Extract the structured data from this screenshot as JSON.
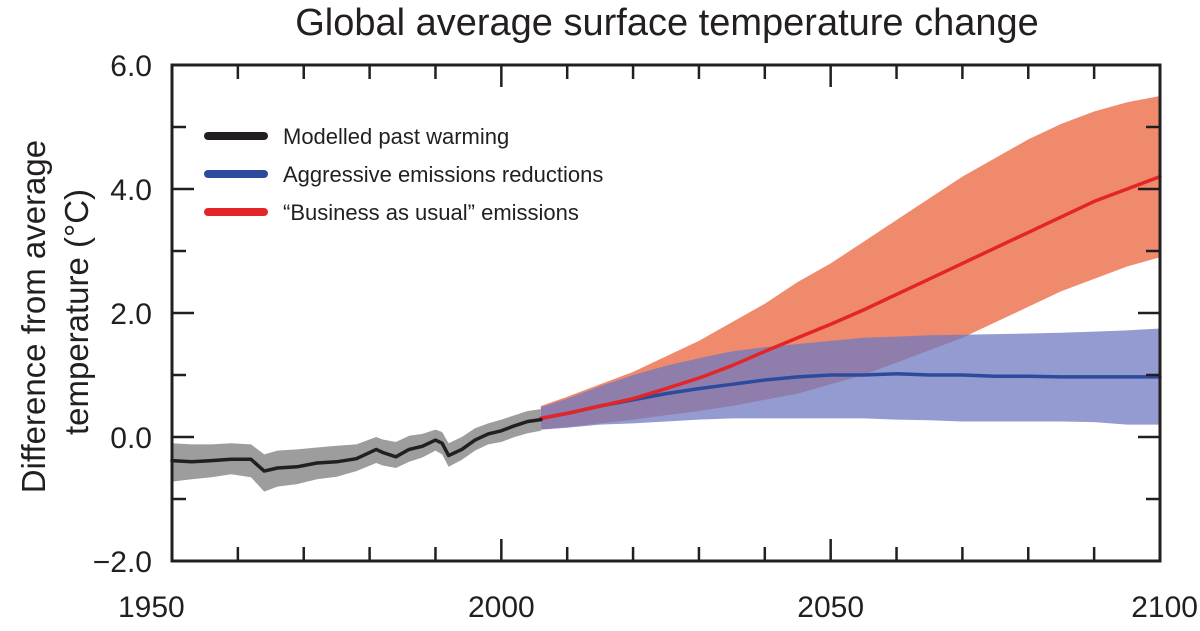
{
  "chart_data": {
    "type": "line",
    "title": "Global average surface temperature change",
    "ylabel": [
      "Difference from average",
      "temperature (°C)"
    ],
    "xlabel": "",
    "xlim": [
      1950,
      2100
    ],
    "ylim": [
      -2.0,
      6.0
    ],
    "x_ticks": [
      1950,
      2000,
      2050,
      2100
    ],
    "x_tick_labels": [
      "1950",
      "2000",
      "2050",
      "2100"
    ],
    "x_minor_tick_step": 10,
    "y_ticks": [
      -2.0,
      0.0,
      2.0,
      4.0,
      6.0
    ],
    "y_tick_labels": [
      "−2.0",
      "0.0",
      "2.0",
      "4.0",
      "6.0"
    ],
    "y_minor_tick_step": 1.0,
    "grid": false,
    "legend_position": "top-left",
    "series": [
      {
        "name": "Modelled past warming",
        "color": "#231f20",
        "band_color": "#9d9d9d",
        "x": [
          1950,
          1953,
          1956,
          1959,
          1962,
          1964,
          1966,
          1969,
          1972,
          1975,
          1978,
          1981,
          1982,
          1984,
          1986,
          1988,
          1990,
          1991,
          1992,
          1994,
          1996,
          1998,
          2000,
          2002,
          2004,
          2006
        ],
        "values": [
          -0.38,
          -0.4,
          -0.38,
          -0.36,
          -0.36,
          -0.55,
          -0.5,
          -0.48,
          -0.42,
          -0.4,
          -0.35,
          -0.2,
          -0.25,
          -0.32,
          -0.2,
          -0.15,
          -0.05,
          -0.1,
          -0.3,
          -0.2,
          -0.05,
          0.05,
          0.1,
          0.18,
          0.25,
          0.28
        ],
        "lower": [
          -0.72,
          -0.68,
          -0.65,
          -0.6,
          -0.65,
          -0.88,
          -0.8,
          -0.76,
          -0.68,
          -0.64,
          -0.55,
          -0.42,
          -0.46,
          -0.5,
          -0.4,
          -0.33,
          -0.22,
          -0.28,
          -0.48,
          -0.37,
          -0.22,
          -0.12,
          -0.08,
          0.0,
          0.06,
          0.1
        ],
        "upper": [
          -0.1,
          -0.12,
          -0.12,
          -0.1,
          -0.12,
          -0.28,
          -0.22,
          -0.2,
          -0.17,
          -0.14,
          -0.12,
          0.0,
          -0.04,
          -0.08,
          0.02,
          0.05,
          0.12,
          0.08,
          -0.1,
          0.0,
          0.14,
          0.22,
          0.28,
          0.35,
          0.42,
          0.45
        ]
      },
      {
        "name": "Aggressive emissions reductions",
        "color": "#2e4a9c",
        "band_color": "#6f79c0",
        "x": [
          2006,
          2010,
          2015,
          2020,
          2025,
          2030,
          2035,
          2040,
          2045,
          2050,
          2055,
          2060,
          2065,
          2070,
          2075,
          2080,
          2085,
          2090,
          2095,
          2100
        ],
        "values": [
          0.3,
          0.38,
          0.5,
          0.6,
          0.7,
          0.78,
          0.85,
          0.92,
          0.97,
          1.0,
          1.0,
          1.02,
          1.0,
          1.0,
          0.98,
          0.98,
          0.97,
          0.97,
          0.97,
          0.97
        ],
        "lower": [
          0.12,
          0.15,
          0.2,
          0.22,
          0.25,
          0.28,
          0.3,
          0.3,
          0.3,
          0.3,
          0.3,
          0.28,
          0.27,
          0.25,
          0.25,
          0.25,
          0.25,
          0.24,
          0.2,
          0.2
        ],
        "upper": [
          0.48,
          0.62,
          0.82,
          1.0,
          1.15,
          1.27,
          1.38,
          1.45,
          1.5,
          1.55,
          1.6,
          1.62,
          1.64,
          1.65,
          1.66,
          1.67,
          1.68,
          1.7,
          1.72,
          1.75
        ]
      },
      {
        "name": "“Business as usual” emissions",
        "color": "#e42528",
        "band_color": "#f08a6c",
        "x": [
          2006,
          2010,
          2015,
          2020,
          2025,
          2030,
          2035,
          2040,
          2045,
          2050,
          2055,
          2060,
          2065,
          2070,
          2075,
          2080,
          2085,
          2090,
          2095,
          2100
        ],
        "values": [
          0.3,
          0.38,
          0.5,
          0.62,
          0.78,
          0.95,
          1.15,
          1.38,
          1.6,
          1.82,
          2.05,
          2.3,
          2.55,
          2.8,
          3.05,
          3.3,
          3.55,
          3.8,
          4.0,
          4.2
        ],
        "lower": [
          0.12,
          0.16,
          0.22,
          0.28,
          0.35,
          0.42,
          0.5,
          0.6,
          0.7,
          0.85,
          1.0,
          1.2,
          1.4,
          1.6,
          1.85,
          2.1,
          2.35,
          2.55,
          2.75,
          2.9
        ],
        "upper": [
          0.5,
          0.65,
          0.85,
          1.05,
          1.3,
          1.55,
          1.85,
          2.15,
          2.5,
          2.8,
          3.15,
          3.5,
          3.85,
          4.2,
          4.5,
          4.8,
          5.05,
          5.25,
          5.4,
          5.5
        ]
      }
    ]
  }
}
